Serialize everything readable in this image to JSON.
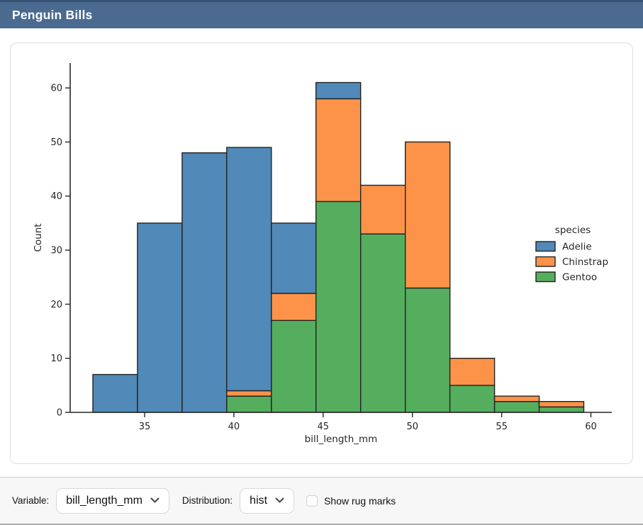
{
  "header": {
    "title": "Penguin Bills"
  },
  "controls": {
    "variable_label": "Variable:",
    "variable_value": "bill_length_mm",
    "distribution_label": "Distribution:",
    "distribution_value": "hist",
    "rug_label": "Show rug marks",
    "rug_checked": false
  },
  "chart_data": {
    "type": "bar",
    "subtype": "stacked-histogram",
    "xlabel": "bill_length_mm",
    "ylabel": "Count",
    "bin_edges": [
      32.1,
      34.6,
      37.1,
      39.6,
      42.1,
      44.6,
      47.1,
      49.6,
      52.1,
      54.6,
      57.1,
      59.6
    ],
    "series": [
      {
        "name": "Adelie",
        "color": "#5189b8",
        "values": [
          7,
          35,
          48,
          45,
          13,
          3,
          0,
          0,
          0,
          0,
          0
        ]
      },
      {
        "name": "Chinstrap",
        "color": "#fc9349",
        "values": [
          0,
          0,
          0,
          1,
          5,
          19,
          9,
          27,
          5,
          1,
          1
        ]
      },
      {
        "name": "Gentoo",
        "color": "#55ad5e",
        "values": [
          0,
          0,
          0,
          3,
          17,
          39,
          33,
          23,
          5,
          2,
          1
        ]
      }
    ],
    "stack_order": [
      "Gentoo",
      "Chinstrap",
      "Adelie"
    ],
    "stack_totals": [
      7,
      35,
      48,
      49,
      35,
      61,
      42,
      50,
      10,
      3,
      2
    ],
    "legend": {
      "title": "species",
      "entries": [
        "Adelie",
        "Chinstrap",
        "Gentoo"
      ],
      "position": "right"
    },
    "xticks": [
      35,
      40,
      45,
      50,
      55,
      60
    ],
    "yticks": [
      0,
      10,
      20,
      30,
      40,
      50,
      60
    ],
    "xlim": [
      30.83,
      61.17
    ],
    "ylim": [
      0,
      64.6
    ],
    "grid": false,
    "edge_color": "#222222",
    "spine_color": "#262626"
  }
}
